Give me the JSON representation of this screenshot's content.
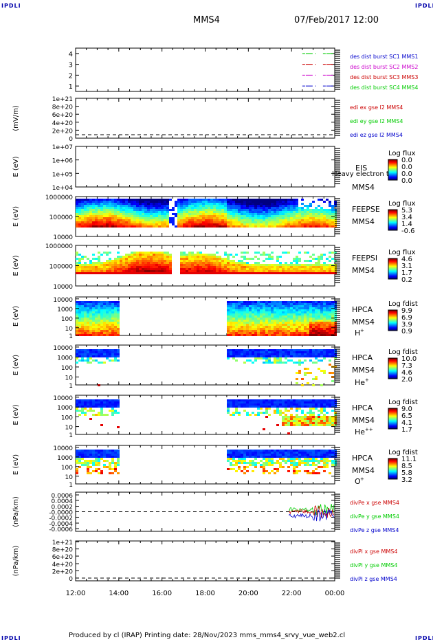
{
  "header": {
    "corner_tl": "IPDLI",
    "corner_tr": "IPDLI",
    "corner_bl": "IPDLI",
    "corner_br": "IPDLI",
    "spacecraft": "MMS4",
    "datetime": "07/Feb/2017 12:00"
  },
  "footer": {
    "text": "Produced by cl (IRAP)   Printing date: 28/Nov/2023   mms_mms4_srvy_vue_web2.cl"
  },
  "colors": {
    "green": "#00cc00",
    "red": "#cc0000",
    "magenta": "#cc00cc",
    "blue": "#0000cc"
  },
  "chart_data": [
    {
      "type": "line",
      "panel": "burst",
      "yticks": [
        "1",
        "2",
        "3",
        "4"
      ],
      "ylim": [
        0.5,
        4.5
      ],
      "legend": [
        {
          "text": "des dist burst SC1 MMS1",
          "color": "#0000cc"
        },
        {
          "text": "des dist burst SC2 MMS2",
          "color": "#cc00cc"
        },
        {
          "text": "des dist burst SC3 MMS3",
          "color": "#cc0000"
        },
        {
          "text": "des dist burst SC4 MMS4",
          "color": "#00cc00"
        }
      ],
      "series": [
        {
          "y": 4,
          "x_start": "22:30",
          "x_end": "00:00",
          "color": "#00cc00"
        },
        {
          "y": 3,
          "x_start": "22:30",
          "x_end": "00:00",
          "color": "#cc0000"
        },
        {
          "y": 2,
          "x_start": "22:30",
          "x_end": "00:00",
          "color": "#cc00cc"
        },
        {
          "y": 1,
          "x_start": "22:30",
          "x_end": "00:00",
          "color": "#0000cc"
        }
      ]
    },
    {
      "type": "line",
      "panel": "edi",
      "ylabel": "(mV/m)",
      "yticks": [
        "0",
        "2e+20",
        "4e+20",
        "6e+20",
        "8e+20",
        "1e+21"
      ],
      "legend": [
        {
          "text": "edi ex gse l2 MMS4",
          "color": "#cc0000"
        },
        {
          "text": "edi ey gse l2 MMS4",
          "color": "#00cc00"
        },
        {
          "text": "edi ez gse l2 MMS4",
          "color": "#0000cc"
        }
      ]
    },
    {
      "type": "heatmap",
      "panel": "eis",
      "ylabel": "E (eV)",
      "yticks": [
        "1e+04",
        "1e+05",
        "1e+06",
        "1e+07"
      ],
      "labels": [
        "EIS",
        "MMS4"
      ],
      "overlay": "Heavy electron to",
      "cbar_title": "Log flux",
      "cbar_ticks": [
        "0.0",
        "0.0",
        "0.0",
        "0.0"
      ]
    },
    {
      "type": "heatmap",
      "panel": "feeps_e",
      "ylabel": "E (eV)",
      "yticks": [
        "10000",
        "100000",
        "1000000"
      ],
      "labels": [
        "FEEPSE",
        "MMS4"
      ],
      "cbar_title": "Log flux",
      "cbar_ticks": [
        "5.3",
        "3.4",
        "1.4",
        "-0.6"
      ]
    },
    {
      "type": "heatmap",
      "panel": "feeps_i",
      "ylabel": "E (eV)",
      "yticks": [
        "10000",
        "100000",
        "1000000"
      ],
      "labels": [
        "FEEPSI",
        "MMS4"
      ],
      "cbar_title": "Log flux",
      "cbar_ticks": [
        "4.6",
        "3.1",
        "1.7",
        "0.2"
      ]
    },
    {
      "type": "heatmap",
      "panel": "hpca_h",
      "ylabel": "E (eV)",
      "yticks": [
        "1",
        "10",
        "100",
        "1000",
        "10000"
      ],
      "labels": [
        "HPCA",
        "MMS4"
      ],
      "species": "H",
      "species_sup": "+",
      "cbar_title": "Log fdist",
      "cbar_ticks": [
        "9.9",
        "6.9",
        "3.9",
        "0.9"
      ]
    },
    {
      "type": "heatmap",
      "panel": "hpca_he1",
      "ylabel": "E (eV)",
      "yticks": [
        "1",
        "10",
        "100",
        "1000",
        "10000"
      ],
      "labels": [
        "HPCA",
        "MMS4"
      ],
      "species": "He",
      "species_sup": "+",
      "cbar_title": "Log fdist",
      "cbar_ticks": [
        "10.0",
        "7.3",
        "4.6",
        "2.0"
      ]
    },
    {
      "type": "heatmap",
      "panel": "hpca_he2",
      "ylabel": "E (eV)",
      "yticks": [
        "1",
        "10",
        "100",
        "1000",
        "10000"
      ],
      "labels": [
        "HPCA",
        "MMS4"
      ],
      "species": "He",
      "species_sup": "++",
      "cbar_title": "Log fdist",
      "cbar_ticks": [
        "9.0",
        "6.5",
        "4.1",
        "1.7"
      ]
    },
    {
      "type": "heatmap",
      "panel": "hpca_o",
      "ylabel": "E (eV)",
      "yticks": [
        "1",
        "10",
        "100",
        "1000",
        "10000"
      ],
      "labels": [
        "HPCA",
        "MMS4"
      ],
      "species": "O",
      "species_sup": "+",
      "cbar_title": "Log fdist",
      "cbar_ticks": [
        "11.1",
        "8.5",
        "5.8",
        "3.2"
      ]
    },
    {
      "type": "line",
      "panel": "divpe",
      "ylabel": "(nPa/km)",
      "yticks": [
        "-0.0006",
        "-0.0004",
        "-0.0002",
        "-0.0000",
        "0.0002",
        "0.0004",
        "0.0006"
      ],
      "legend": [
        {
          "text": "divPe x gse MMS4",
          "color": "#cc0000"
        },
        {
          "text": "divPe y gse MMS4",
          "color": "#00cc00"
        },
        {
          "text": "divPe z gse MMS4",
          "color": "#0000cc"
        }
      ]
    },
    {
      "type": "line",
      "panel": "divpi",
      "ylabel": "(nPa/km)",
      "yticks": [
        "0",
        "2e+20",
        "4e+20",
        "6e+20",
        "8e+20",
        "1e+21"
      ],
      "legend": [
        {
          "text": "divPi x gse MMS4",
          "color": "#cc0000"
        },
        {
          "text": "divPi y gse MMS4",
          "color": "#00cc00"
        },
        {
          "text": "divPi z gse MMS4",
          "color": "#0000cc"
        }
      ]
    }
  ],
  "xaxis": {
    "ticks": [
      "12:00",
      "14:00",
      "16:00",
      "18:00",
      "20:00",
      "22:00",
      "00:00"
    ]
  }
}
